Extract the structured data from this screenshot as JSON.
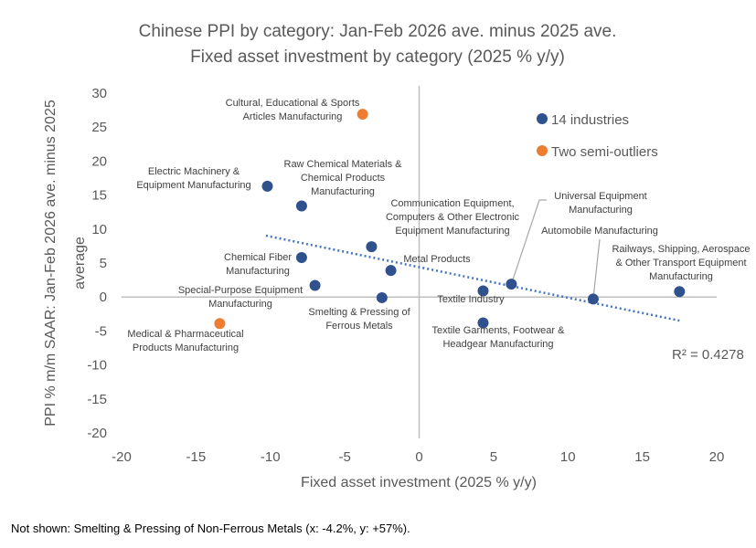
{
  "chart_data": {
    "type": "scatter",
    "title": [
      "Chinese PPI by category: Jan-Feb 2026 ave. minus 2025 ave.",
      "Fixed asset investment by category (2025 % y/y)"
    ],
    "xlabel": "Fixed asset investment (2025 % y/y)",
    "ylabel": [
      "PPI % m/m SAAR: Jan-Feb 2026 ave. minus 2025",
      "average"
    ],
    "xlim": [
      -20,
      20
    ],
    "ylim": [
      -20,
      30
    ],
    "xticks": [
      -20,
      -15,
      -10,
      -5,
      0,
      5,
      10,
      15,
      20
    ],
    "yticks": [
      30,
      25,
      20,
      15,
      10,
      5,
      0,
      -5,
      -10,
      -15,
      -20
    ],
    "grid": false,
    "legend_position": "top-right",
    "colors": {
      "industries": "#2f528f",
      "outliers": "#ed7d31",
      "trendline": "#4472c4",
      "axis": "#bfbfbf",
      "text": "#595959"
    },
    "series": [
      {
        "name": "14 industries",
        "points": [
          {
            "label": [
              "Electric Machinery &",
              "Equipment Manufacturing"
            ],
            "x": -10.2,
            "y": 16.3
          },
          {
            "label": [
              "Raw Chemical Materials &",
              "Chemical Products",
              "Manufacturing"
            ],
            "x": -7.9,
            "y": 13.4
          },
          {
            "label": [
              "Chemical Fiber",
              "Manufacturing"
            ],
            "x": -7.9,
            "y": 5.8
          },
          {
            "label": [
              "Special-Purpose Equipment",
              "Manufacturing"
            ],
            "x": -7.0,
            "y": 1.7
          },
          {
            "label": [
              "Communication Equipment,",
              "Computers & Other Electronic",
              "Equipment Manufacturing"
            ],
            "x": -3.2,
            "y": 7.4
          },
          {
            "label": [
              "Metal Products"
            ],
            "x": -1.9,
            "y": 3.9
          },
          {
            "label": [
              "Smelting & Pressing of",
              "Ferrous Metals"
            ],
            "x": -2.5,
            "y": -0.1
          },
          {
            "label": [
              "Textile Industry"
            ],
            "x": 4.3,
            "y": 0.9
          },
          {
            "label": [
              "Textile Garments, Footwear &",
              "Headgear Manufacturing"
            ],
            "x": 4.3,
            "y": -3.8
          },
          {
            "label": [
              "Universal Equipment",
              "Manufacturing"
            ],
            "x": 6.2,
            "y": 1.9
          },
          {
            "label": [
              "Automobile Manufacturing"
            ],
            "x": 11.7,
            "y": -0.3
          },
          {
            "label": [
              "Railways, Shipping, Aerospace",
              "& Other Transport Equipment",
              "Manufacturing"
            ],
            "x": 17.5,
            "y": 0.8
          }
        ]
      },
      {
        "name": "Two semi-outliers",
        "points": [
          {
            "label": [
              "Cultural, Educational & Sports",
              "Articles Manufacturing"
            ],
            "x": -3.8,
            "y": 26.9
          },
          {
            "label": [
              "Medical & Pharmaceutical",
              "Products Manufacturing"
            ],
            "x": -13.4,
            "y": -3.9
          }
        ]
      }
    ],
    "trendline": {
      "type": "linear",
      "x_range": [
        -10.3,
        17.5
      ],
      "slope": -0.45,
      "intercept": 4.4,
      "r2_label": "R² = 0.4278"
    }
  },
  "footnote": "Not shown: Smelting & Pressing of Non-Ferrous Metals (x: -4.2%, y: +57%)."
}
